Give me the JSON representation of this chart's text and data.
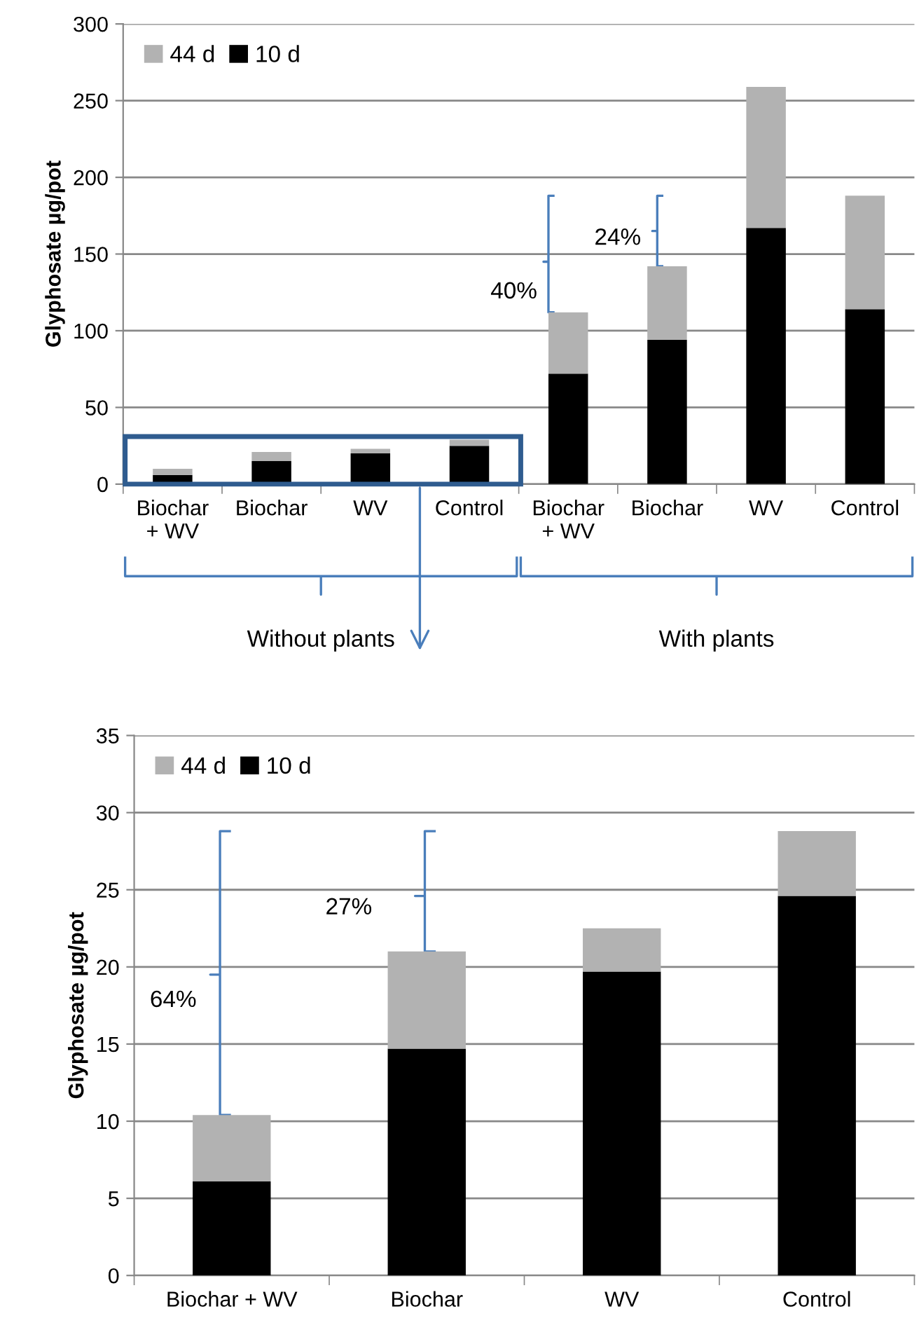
{
  "chart_data": [
    {
      "type": "bar",
      "stacked": true,
      "ylabel": "Glyphosate µg/pot",
      "categories": [
        "Biochar\n+ WV",
        "Biochar",
        "WV",
        "Control",
        "Biochar\n+ WV",
        "Biochar",
        "WV",
        "Control"
      ],
      "series": [
        {
          "name": "10 d",
          "color": "#000000",
          "values": [
            6,
            15,
            20,
            25,
            72,
            94,
            167,
            114
          ]
        },
        {
          "name": "44 d",
          "color": "#b2b2b2",
          "values": [
            4,
            6,
            3,
            4,
            40,
            48,
            92,
            74
          ]
        }
      ],
      "ylim": [
        0,
        300
      ],
      "yticks": [
        0,
        50,
        100,
        150,
        200,
        250,
        300
      ],
      "grid": "y",
      "legend": "top left",
      "annotations": [
        "40%",
        "24%",
        "Without plants",
        "With plants"
      ]
    },
    {
      "type": "bar",
      "stacked": true,
      "ylabel": "Glyphosate µg/pot",
      "categories": [
        "Biochar + WV",
        "Biochar",
        "WV",
        "Control"
      ],
      "series": [
        {
          "name": "10 d",
          "color": "#000000",
          "values": [
            6.1,
            14.7,
            19.7,
            24.6
          ]
        },
        {
          "name": "44 d",
          "color": "#b2b2b2",
          "values": [
            4.3,
            6.3,
            2.8,
            4.2
          ]
        }
      ],
      "ylim": [
        0,
        35
      ],
      "yticks": [
        0,
        5,
        10,
        15,
        20,
        25,
        30,
        35
      ],
      "grid": "y",
      "legend": "top left",
      "annotations": [
        "64%",
        "27%"
      ]
    }
  ]
}
